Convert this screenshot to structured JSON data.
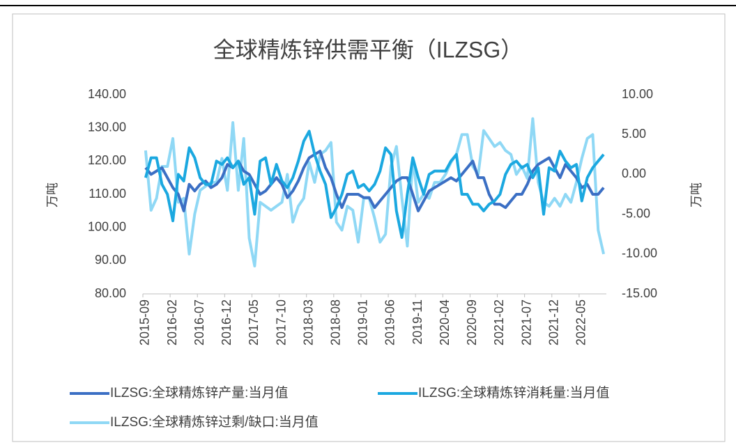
{
  "chart_data": {
    "type": "line",
    "title": "全球精炼锌供需平衡（ILZSG）",
    "y_label": "万吨",
    "y2_label": "万吨",
    "categories": [
      "2015-09",
      null,
      null,
      null,
      null,
      "2016-02",
      null,
      null,
      null,
      null,
      "2016-07",
      null,
      null,
      null,
      null,
      "2016-12",
      null,
      null,
      null,
      null,
      "2017-05",
      null,
      null,
      null,
      null,
      "2017-10",
      null,
      null,
      null,
      null,
      "2018-03",
      null,
      null,
      null,
      null,
      "2018-08",
      null,
      null,
      null,
      null,
      "2019-01",
      null,
      null,
      null,
      null,
      "2019-06",
      null,
      null,
      null,
      null,
      "2019-11",
      null,
      null,
      null,
      null,
      "2020-04",
      null,
      null,
      null,
      null,
      "2020-09",
      null,
      null,
      null,
      null,
      "2021-02",
      null,
      null,
      null,
      null,
      "2021-07",
      null,
      null,
      null,
      null,
      "2021-12",
      null,
      null,
      null,
      null,
      "2022-05",
      null,
      null,
      null,
      null
    ],
    "series": [
      {
        "name": "ILZSG:全球精炼锌产量:当月值",
        "color": "#3b6fc4",
        "axis": "y",
        "values": [
          118,
          116,
          117,
          118,
          115,
          112,
          110,
          105,
          113,
          111,
          113,
          114,
          112,
          113,
          115,
          119,
          118,
          120,
          117,
          116,
          113,
          110,
          111,
          113,
          115,
          113,
          109,
          111,
          114,
          118,
          121,
          122,
          123,
          118,
          115,
          110,
          106,
          110,
          110,
          110,
          109,
          109,
          106,
          108,
          110,
          112,
          114,
          115,
          115,
          110,
          105,
          108,
          111,
          112,
          113,
          114,
          115,
          114,
          116,
          118,
          120,
          115,
          115,
          110,
          107,
          107,
          106,
          108,
          110,
          110,
          113,
          117,
          119,
          120,
          121,
          118,
          115,
          119,
          117,
          115,
          112,
          113,
          110,
          110,
          112
        ]
      },
      {
        "name": "ILZSG:全球精炼锌消耗量:当月值",
        "color": "#1ba8e0",
        "axis": "y",
        "values": [
          115,
          121,
          121,
          113,
          110,
          102,
          116,
          114,
          124,
          121,
          115,
          113,
          113,
          120,
          119,
          121,
          118,
          120,
          113,
          115,
          104,
          120,
          121,
          113,
          119,
          114,
          112,
          115,
          120,
          126,
          129,
          122,
          117,
          113,
          103,
          106,
          110,
          116,
          117,
          112,
          113,
          111,
          113,
          117,
          124,
          122,
          105,
          97,
          110,
          121,
          115,
          110,
          116,
          117,
          117,
          117,
          120,
          122,
          110,
          110,
          107,
          107,
          105,
          107,
          108,
          110,
          116,
          119,
          120,
          118,
          119,
          115,
          118,
          104,
          118,
          117,
          123,
          120,
          118,
          119,
          108,
          115,
          118,
          120,
          122
        ]
      },
      {
        "name": "ILZSG:全球精炼锌过剩/缺口:当月值",
        "color": "#8fd8f5",
        "axis": "y2",
        "values": [
          3,
          -4.5,
          -3,
          1,
          1,
          4.5,
          -3.5,
          -3,
          -10,
          -5,
          -2,
          -1.5,
          -1,
          -1,
          2,
          -2,
          6.5,
          -2,
          4.5,
          -8,
          -11.5,
          -3.5,
          -4,
          -4.5,
          -4,
          -3.5,
          0,
          -6,
          -4,
          -3,
          1.5,
          -1,
          2.5,
          3,
          4,
          -6,
          -7,
          -4,
          -4.5,
          -8.5,
          -3,
          -3,
          -5.5,
          -8.5,
          -7.5,
          1,
          3.5,
          -3,
          -9,
          2,
          -3.5,
          -2.5,
          -3,
          -1,
          -1,
          0,
          1.5,
          2.5,
          5,
          5,
          1,
          0,
          5.5,
          4.5,
          3.5,
          4,
          3,
          2.5,
          0,
          1,
          -0.5,
          7,
          -1,
          -3.5,
          -4,
          -3,
          -4,
          -2.5,
          -3.5,
          -1,
          2,
          4.5,
          5,
          -7,
          -10
        ]
      }
    ],
    "ylim": [
      80,
      140
    ],
    "yticks": [
      {
        "value": 80,
        "label": "80.00"
      },
      {
        "value": 90,
        "label": "90.00"
      },
      {
        "value": 100,
        "label": "100.00"
      },
      {
        "value": 110,
        "label": "110.00"
      },
      {
        "value": 120,
        "label": "120.00"
      },
      {
        "value": 130,
        "label": "130.00"
      },
      {
        "value": 140,
        "label": "140.00"
      }
    ],
    "y2lim": [
      -15,
      10
    ],
    "y2ticks": [
      {
        "value": -15,
        "label": "-15.00"
      },
      {
        "value": -10,
        "label": "-10.00"
      },
      {
        "value": -5,
        "label": "-5.00"
      },
      {
        "value": 0,
        "label": "0.00"
      },
      {
        "value": 5,
        "label": "5.00"
      },
      {
        "value": 10,
        "label": "10.00"
      }
    ],
    "grid": false
  }
}
